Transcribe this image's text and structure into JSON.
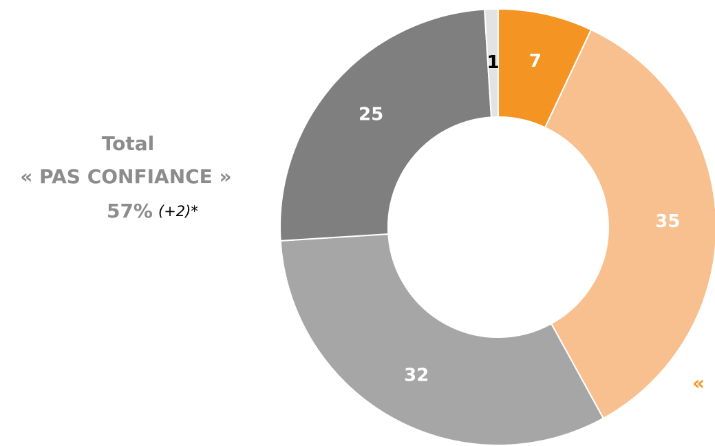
{
  "chart_data": {
    "type": "pie",
    "values": [
      7,
      35,
      32,
      25,
      1
    ],
    "colors": [
      "#f39423",
      "#f9c08f",
      "#a6a6a6",
      "#7f7f7f",
      "#e3e3e3"
    ],
    "label_colors": [
      "#ffffff",
      "#ffffff",
      "#ffffff",
      "#ffffff",
      "#000000"
    ],
    "annotations": {
      "line1": "Total",
      "line2": "« PAS CONFIANCE »",
      "total": "57%",
      "change": "(+2)*",
      "edge": "«"
    }
  }
}
